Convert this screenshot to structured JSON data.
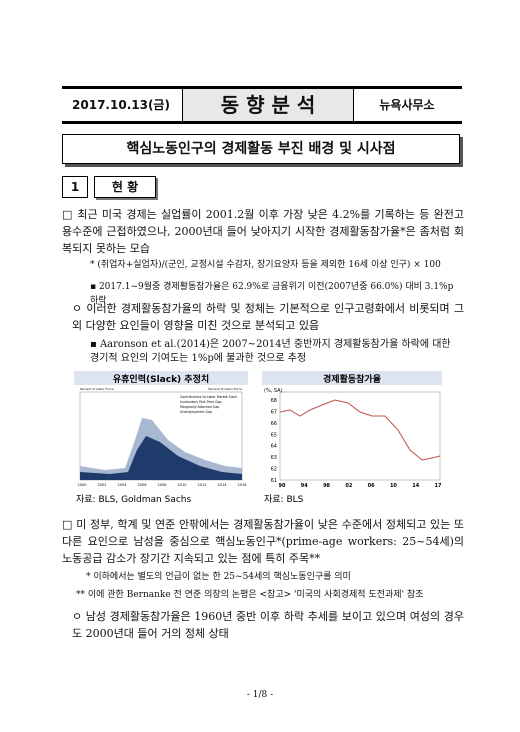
{
  "header": {
    "date": "2017.10.13(금)",
    "title": "동 향 분 석",
    "office": "뉴욕사무소"
  },
  "main_title": "핵심노동인구의 경제활동 부진 배경 및 시사점",
  "section": {
    "number": "1",
    "title": "현 황"
  },
  "body": [
    {
      "text": "□ 최근 미국 경제는 실업률이 2001.2월 이후 가장 낮은 4.2%를 기록하는 등 완전고용수준에 근접하였으나, 2000년대 들어 낮아지기 시작한 경제활동참가율*은 좀처럼 회복되지 못하는 모습"
    },
    {
      "text": "* (취업자+실업자)/(군인, 교정시설 수감자, 장기요양자 등을 제외한 16세 이상 인구) × 100"
    },
    {
      "text": "▪ 2017.1~9월중 경제활동참가율은 62.9%로 금융위기 이전(2007년중 66.0%) 대비 3.1%p 하락"
    },
    {
      "text": "ㅇ 이러한 경제활동참가율의 하락 및 정체는 기본적으로 인구고령화에서 비롯되며 그 외 다양한 요인들이 영향을 미친 것으로 분석되고 있음"
    },
    {
      "text": "▪ Aaronson et al.(2014)은 2007~2014년 중반까지 경제활동참가율 하락에 대한 경기적 요인의 기여도는 1%p에 불과한 것으로 추정"
    }
  ],
  "figures": [
    {
      "title": "유휴인력(Slack) 추정치",
      "source": "자료: BLS, Goldman Sachs",
      "axis_left": "Percent of Labor Force",
      "axis_right": "Percent of Labor Force",
      "legend": [
        "Contributions to Labor Market Slack",
        "Involuntary Part-Time Gap",
        "Marginally Attached Gap",
        "Unemployment Gap"
      ],
      "xlabels": [
        "2000",
        "2002",
        "2004",
        "2006",
        "2008",
        "2010",
        "2012",
        "2014",
        "2016"
      ]
    },
    {
      "title": "경제활동참가율",
      "source": "자료: BLS",
      "unit": "(%, SA)",
      "yticks": [
        "68",
        "67",
        "66",
        "65",
        "64",
        "63",
        "62",
        "61"
      ],
      "xlabels": [
        "90",
        "94",
        "98",
        "02",
        "06",
        "10",
        "14",
        "17"
      ]
    }
  ],
  "body2": [
    {
      "text": "□ 미 정부, 학계 및 연준 안팎에서는 경제활동참가율이 낮은 수준에서 정체되고 있는 또 다른 요인으로 남성을 중심으로 핵심노동인구*(prime-age workers: 25~54세)의 노동공급 감소가 장기간 지속되고 있는 점에 특히 주목**"
    },
    {
      "text": "* 이하에서는 별도의 언급이 없는 한 25~54세의 핵심노동인구를 의미"
    },
    {
      "text": "** 이에 관한 Bernanke 전 연준 의장의 논평은 <참고> '미국의 사회경제적 도전과제' 참조"
    },
    {
      "text": "ㅇ 남성 경제활동참가율은 1960년 중반 이후 하락 추세를 보이고 있으며 여성의 경우도 2000년대 들어 거의 정체 상태"
    }
  ],
  "footer": "- 1/8 -"
}
